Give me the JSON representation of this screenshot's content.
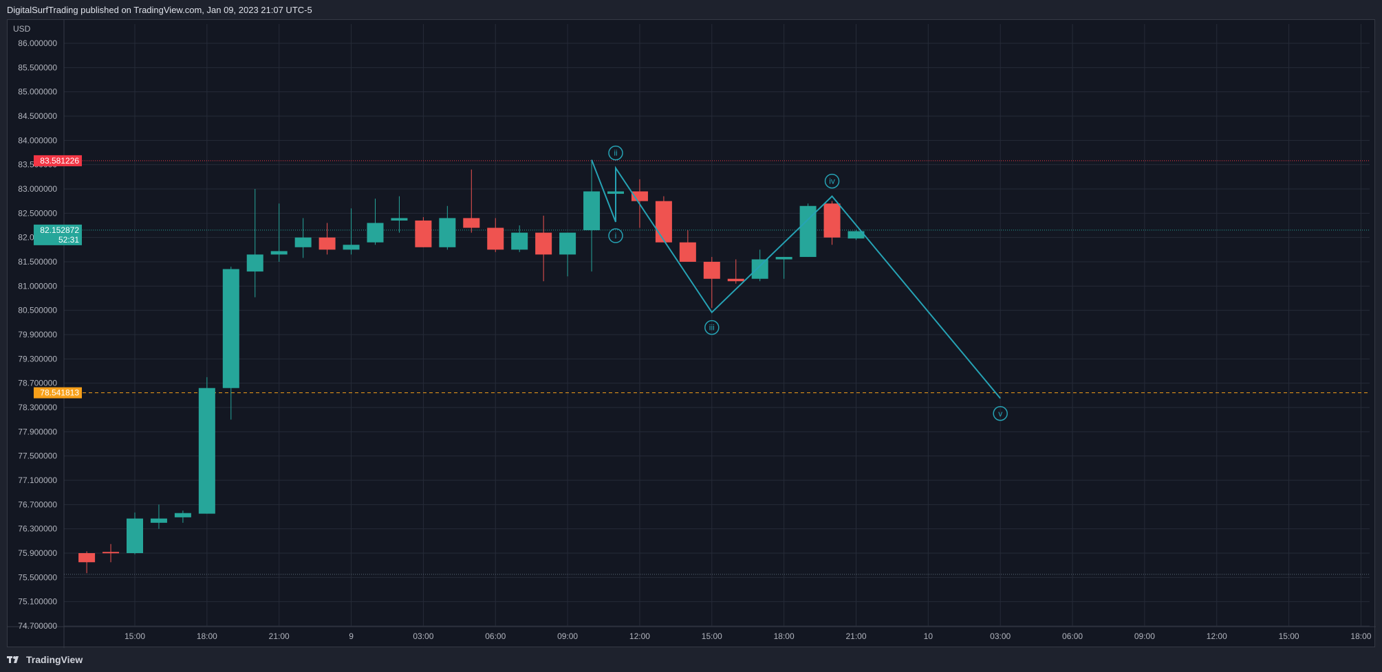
{
  "header": {
    "published_text": "DigitalSurfTrading published on TradingView.com, Jan 09, 2023 21:07 UTC-5"
  },
  "footer": {
    "brand": "TradingView",
    "logo_icon": "tradingview-logo-icon"
  },
  "colors": {
    "background": "#131722",
    "grid": "#262b38",
    "up": "#26a69a",
    "down": "#ef5350",
    "wave": "#26a3b5",
    "resistance": "#f23645",
    "support": "#f7a01a",
    "current": "#26a69a",
    "low_line": "#5d6b7a"
  },
  "chart_data": {
    "type": "candlestick",
    "currency_label": "USD",
    "y_axis_ticks": [
      "86.000000",
      "85.500000",
      "85.000000",
      "84.500000",
      "84.000000",
      "83.500000",
      "83.000000",
      "82.500000",
      "82.000000",
      "81.500000",
      "81.000000",
      "80.500000",
      "79.900000",
      "79.300000",
      "78.700000",
      "78.300000",
      "77.900000",
      "77.500000",
      "77.100000",
      "76.700000",
      "76.300000",
      "75.900000",
      "75.500000",
      "75.100000",
      "74.700000"
    ],
    "x_axis_ticks": [
      "15:00",
      "18:00",
      "21:00",
      "9",
      "03:00",
      "06:00",
      "09:00",
      "12:00",
      "15:00",
      "18:00",
      "21:00",
      "10",
      "03:00",
      "06:00",
      "09:00",
      "12:00",
      "15:00",
      "18:00"
    ],
    "x_tick_hours": [
      15,
      18,
      21,
      24,
      27,
      30,
      33,
      36,
      39,
      42,
      45,
      48,
      51,
      54,
      57,
      60,
      63,
      66
    ],
    "candles": [
      {
        "t": 13,
        "o": 75.9,
        "h": 75.93,
        "l": 75.57,
        "c": 75.75
      },
      {
        "t": 14,
        "o": 75.92,
        "h": 76.05,
        "l": 75.75,
        "c": 75.91
      },
      {
        "t": 15,
        "o": 75.9,
        "h": 76.57,
        "l": 75.88,
        "c": 76.47
      },
      {
        "t": 16,
        "o": 76.4,
        "h": 76.7,
        "l": 76.3,
        "c": 76.47
      },
      {
        "t": 17,
        "o": 76.49,
        "h": 76.6,
        "l": 76.4,
        "c": 76.56
      },
      {
        "t": 18,
        "o": 76.55,
        "h": 78.85,
        "l": 76.55,
        "c": 78.62
      },
      {
        "t": 19,
        "o": 78.62,
        "h": 81.4,
        "l": 78.1,
        "c": 81.35
      },
      {
        "t": 20,
        "o": 81.3,
        "h": 83.0,
        "l": 80.77,
        "c": 81.65
      },
      {
        "t": 21,
        "o": 81.65,
        "h": 82.7,
        "l": 81.5,
        "c": 81.72
      },
      {
        "t": 22,
        "o": 81.8,
        "h": 82.4,
        "l": 81.58,
        "c": 82.0
      },
      {
        "t": 23,
        "o": 82.0,
        "h": 82.3,
        "l": 81.65,
        "c": 81.75
      },
      {
        "t": 24,
        "o": 81.75,
        "h": 82.6,
        "l": 81.65,
        "c": 81.85
      },
      {
        "t": 25,
        "o": 81.9,
        "h": 82.8,
        "l": 81.85,
        "c": 82.3
      },
      {
        "t": 26,
        "o": 82.35,
        "h": 82.85,
        "l": 82.1,
        "c": 82.4
      },
      {
        "t": 27,
        "o": 82.35,
        "h": 82.42,
        "l": 81.8,
        "c": 81.8
      },
      {
        "t": 28,
        "o": 81.8,
        "h": 82.65,
        "l": 81.75,
        "c": 82.4
      },
      {
        "t": 29,
        "o": 82.4,
        "h": 83.4,
        "l": 82.1,
        "c": 82.2
      },
      {
        "t": 30,
        "o": 82.2,
        "h": 82.4,
        "l": 81.7,
        "c": 81.75
      },
      {
        "t": 31,
        "o": 81.75,
        "h": 82.25,
        "l": 81.7,
        "c": 82.1
      },
      {
        "t": 32,
        "o": 82.1,
        "h": 82.45,
        "l": 81.1,
        "c": 81.65
      },
      {
        "t": 33,
        "o": 81.65,
        "h": 82.1,
        "l": 81.2,
        "c": 82.1
      },
      {
        "t": 34,
        "o": 82.15,
        "h": 83.6,
        "l": 81.3,
        "c": 82.95
      },
      {
        "t": 35,
        "o": 82.9,
        "h": 83.0,
        "l": 82.85,
        "c": 82.95
      },
      {
        "t": 36,
        "o": 82.95,
        "h": 83.2,
        "l": 82.2,
        "c": 82.75
      },
      {
        "t": 37,
        "o": 82.75,
        "h": 82.85,
        "l": 81.9,
        "c": 81.9
      },
      {
        "t": 38,
        "o": 81.9,
        "h": 82.15,
        "l": 81.5,
        "c": 81.5
      },
      {
        "t": 39,
        "o": 81.5,
        "h": 81.6,
        "l": 80.55,
        "c": 81.15
      },
      {
        "t": 40,
        "o": 81.15,
        "h": 81.55,
        "l": 81.05,
        "c": 81.1
      },
      {
        "t": 41,
        "o": 81.15,
        "h": 81.75,
        "l": 81.1,
        "c": 81.55
      },
      {
        "t": 42,
        "o": 81.55,
        "h": 81.6,
        "l": 81.15,
        "c": 81.6
      },
      {
        "t": 43,
        "o": 81.6,
        "h": 82.7,
        "l": 81.6,
        "c": 82.65
      },
      {
        "t": 44,
        "o": 82.7,
        "h": 82.75,
        "l": 81.85,
        "c": 82.0
      },
      {
        "t": 45,
        "o": 81.98,
        "h": 82.15,
        "l": 81.95,
        "c": 82.13
      }
    ],
    "wave_path": [
      {
        "t": 34,
        "p": 83.6,
        "label": ""
      },
      {
        "t": 35,
        "p": 82.32,
        "label": "i"
      },
      {
        "t": 35,
        "p": 83.43,
        "label": "ii"
      },
      {
        "t": 39,
        "p": 80.45,
        "label": "iii"
      },
      {
        "t": 44,
        "p": 82.85,
        "label": "iv"
      },
      {
        "t": 51,
        "p": 78.45,
        "label": "v"
      }
    ],
    "levels": {
      "resistance": {
        "value": 83.581226,
        "label": "83.581226"
      },
      "current": {
        "value": 82.152872,
        "label": "82.152872",
        "countdown": "52:31"
      },
      "support": {
        "value": 78.541813,
        "label": "78.541813"
      },
      "low_dotted": {
        "value": 75.55
      }
    }
  }
}
